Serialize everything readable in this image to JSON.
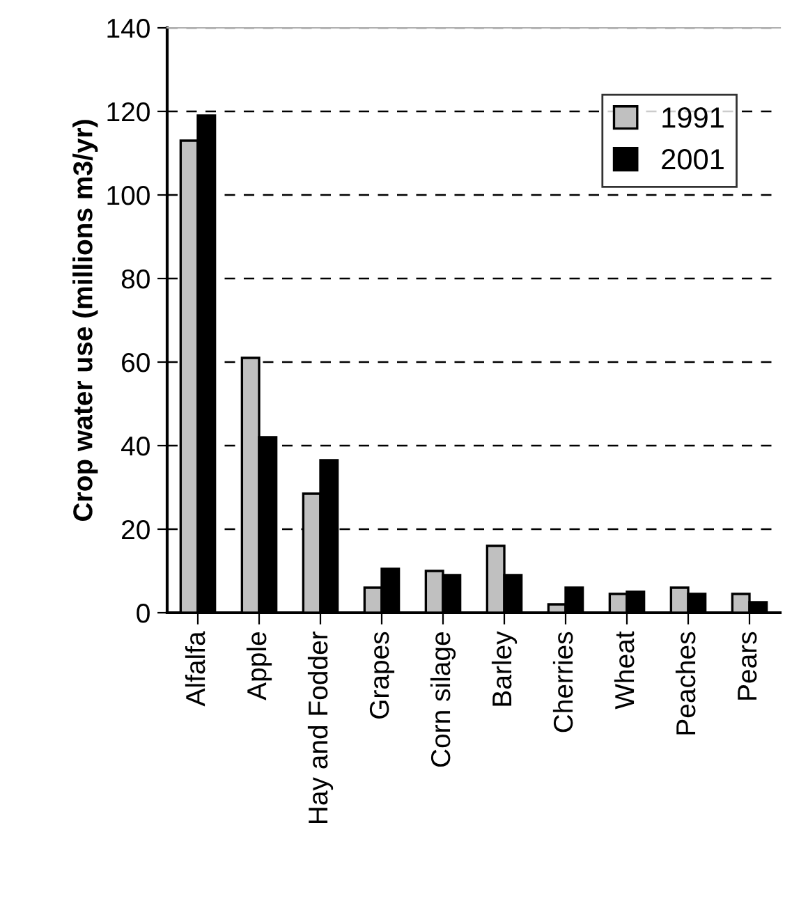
{
  "chart_data": {
    "type": "bar",
    "ylabel": "Crop water use (millions m3/yr)",
    "categories": [
      "Alfalfa",
      "Apple",
      "Hay and Fodder",
      "Grapes",
      "Corn silage",
      "Barley",
      "Cherries",
      "Wheat",
      "Peaches",
      "Pears"
    ],
    "series": [
      {
        "name": "1991",
        "color": "#c0c0c0",
        "values": [
          113,
          61,
          28.5,
          6,
          10,
          16,
          2,
          4.5,
          6,
          4.5
        ]
      },
      {
        "name": "2001",
        "color": "#000000",
        "values": [
          119,
          42,
          36.5,
          10.5,
          9,
          9,
          6,
          5,
          4.5,
          2.5
        ]
      }
    ],
    "ylim": [
      0,
      140
    ],
    "yticks": [
      0,
      20,
      40,
      60,
      80,
      100,
      120,
      140
    ],
    "grid": "y",
    "legend": "top right"
  }
}
